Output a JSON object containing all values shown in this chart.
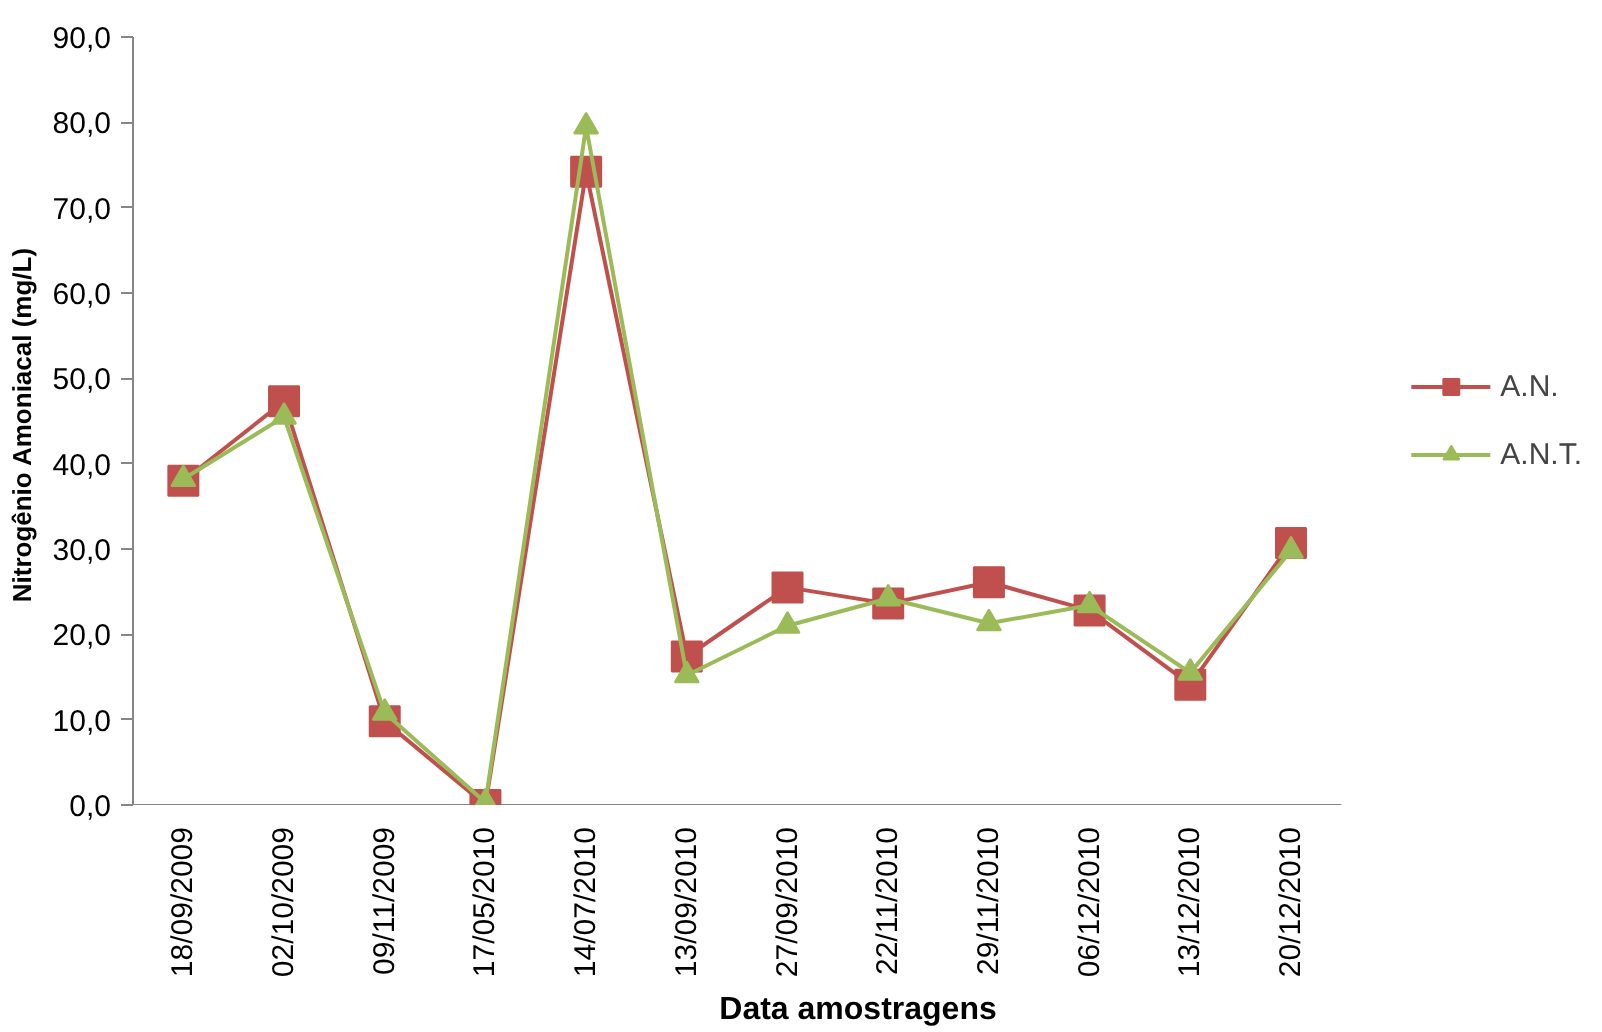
{
  "chart_data": {
    "type": "line",
    "xlabel": "Data amostragens",
    "ylabel": "Nitrogênio Amoniacal  (mg/L)",
    "categories": [
      "18/09/2009",
      "02/10/2009",
      "09/11/2009",
      "17/05/2010",
      "14/07/2010",
      "13/09/2010",
      "27/09/2010",
      "22/11/2010",
      "29/11/2010",
      "06/12/2010",
      "13/12/2010",
      "20/12/2010"
    ],
    "series": [
      {
        "name": "A.N.",
        "color": "#c0504d",
        "marker": "square",
        "values": [
          38.0,
          47.3,
          9.8,
          0.0,
          74.2,
          17.4,
          25.5,
          23.6,
          26.1,
          22.8,
          14.1,
          30.7
        ]
      },
      {
        "name": "A.N.T.",
        "color": "#9bbb59",
        "marker": "triangle",
        "values": [
          38.2,
          45.5,
          10.8,
          0.3,
          79.5,
          15.2,
          21.0,
          24.2,
          21.3,
          23.4,
          15.5,
          29.8
        ]
      }
    ],
    "ylim": [
      0,
      90
    ],
    "yticks": [
      {
        "value": 0,
        "label": "0,0"
      },
      {
        "value": 10,
        "label": "10,0"
      },
      {
        "value": 20,
        "label": "20,0"
      },
      {
        "value": 30,
        "label": "30,0"
      },
      {
        "value": 40,
        "label": "40,0"
      },
      {
        "value": 50,
        "label": "50,0"
      },
      {
        "value": 60,
        "label": "60,0"
      },
      {
        "value": 70,
        "label": "70,0"
      },
      {
        "value": 80,
        "label": "80,0"
      },
      {
        "value": 90,
        "label": "90,0"
      }
    ],
    "grid": false,
    "legend": "right",
    "line_style": "solid"
  }
}
